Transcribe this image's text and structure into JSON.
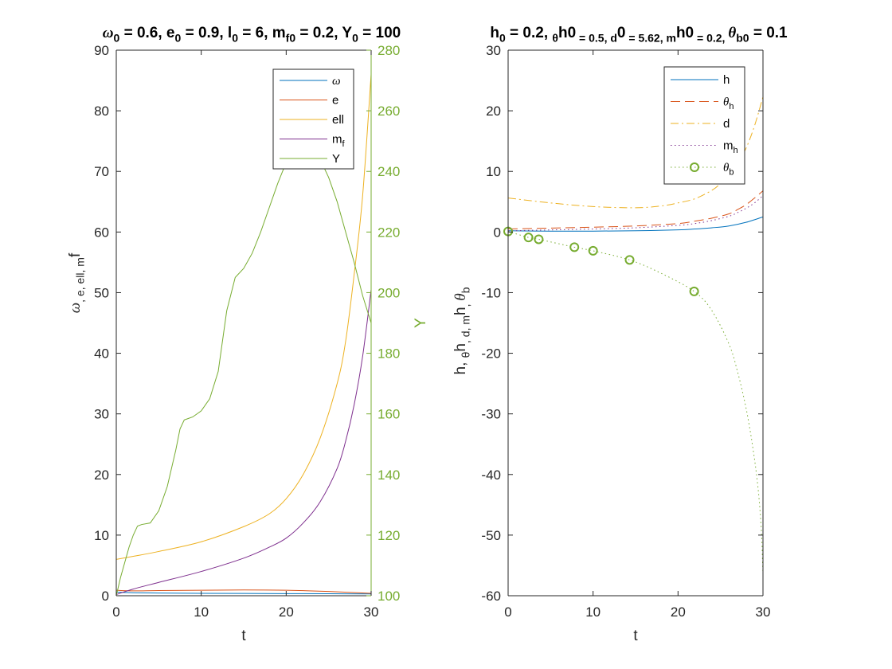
{
  "chart_data": [
    {
      "type": "line",
      "title": [
        "ω",
        "0",
        " = 0.6, e",
        "0",
        " = 0.9, l",
        "0",
        " = 6, m",
        "f0",
        " = 0.2, Y",
        "0",
        " = 100"
      ],
      "xlabel": "t",
      "ylabel_left": [
        "ω",
        ",  e,  ell,  m",
        "f"
      ],
      "ylabel_right": "Y",
      "xlim": [
        0,
        30
      ],
      "ylim_left": [
        0,
        90
      ],
      "ylim_right": [
        100,
        280
      ],
      "xticks": [
        0,
        10,
        20,
        30
      ],
      "yticks_left": [
        0,
        10,
        20,
        30,
        40,
        50,
        60,
        70,
        80,
        90
      ],
      "yticks_right": [
        100,
        120,
        140,
        160,
        180,
        200,
        220,
        240,
        260,
        280
      ],
      "legend": {
        "position": "top-right",
        "entries": [
          [
            "ω",
            ""
          ],
          [
            "e",
            ""
          ],
          [
            "ell",
            ""
          ],
          [
            "m",
            "f"
          ],
          [
            "Y",
            ""
          ]
        ]
      },
      "colors": {
        "omega": "#0072BD",
        "e": "#D95319",
        "ell": "#EDB120",
        "mf": "#7E2F8E",
        "Y": "#77AC30"
      },
      "series": [
        {
          "name": "ω",
          "axis": "left",
          "x": [
            0,
            2,
            5,
            10,
            15,
            20,
            25,
            30
          ],
          "y": [
            0.6,
            0.5,
            0.45,
            0.4,
            0.38,
            0.35,
            0.32,
            0.3
          ]
        },
        {
          "name": "e",
          "axis": "left",
          "x": [
            0,
            2,
            5,
            10,
            15,
            20,
            25,
            30
          ],
          "y": [
            0.9,
            0.8,
            0.85,
            0.9,
            0.95,
            0.9,
            0.7,
            0.4
          ]
        },
        {
          "name": "ell",
          "axis": "left",
          "x": [
            0,
            2,
            5,
            10,
            15,
            18,
            20,
            22,
            24,
            26,
            27,
            28,
            29,
            30
          ],
          "y": [
            6,
            6.5,
            7.3,
            8.9,
            11.4,
            13.5,
            16,
            20,
            26,
            35,
            42,
            53,
            66,
            86
          ]
        },
        {
          "name": "m_f",
          "axis": "left",
          "x": [
            0,
            2,
            5,
            10,
            15,
            18,
            20,
            22,
            24,
            26,
            27,
            28,
            29,
            30
          ],
          "y": [
            0.2,
            1.1,
            2.2,
            4,
            6.2,
            8,
            9.5,
            12,
            15.5,
            21,
            25.5,
            31.5,
            39.5,
            50.5
          ]
        },
        {
          "name": "Y",
          "axis": "right",
          "x": [
            0,
            0.5,
            1,
            1.5,
            2,
            2.5,
            3,
            4,
            5,
            6,
            7,
            7.5,
            8,
            8.5,
            9,
            10,
            11,
            12,
            13,
            14,
            15,
            16,
            17,
            18,
            19,
            20,
            21,
            22,
            23,
            24,
            25,
            26,
            27,
            28,
            29,
            30
          ],
          "y": [
            100,
            106,
            111,
            116,
            120,
            123,
            123.5,
            124,
            128,
            136,
            148,
            155,
            158,
            158.5,
            159,
            161,
            165,
            174,
            194,
            205,
            208,
            213,
            220,
            228,
            236,
            243,
            247,
            248,
            247,
            244,
            238,
            230,
            220,
            210,
            199,
            190
          ]
        }
      ]
    },
    {
      "type": "line",
      "title": [
        "h",
        "0",
        " = 0.2, ",
        "θ",
        "h0",
        " = 0.5, d",
        "0",
        " = 5.62, m",
        "h0",
        " = 0.2, ",
        "θ",
        "b0",
        " = 0.1"
      ],
      "xlabel": "t",
      "ylabel": [
        "h,  ",
        "θ",
        "h",
        ",  d,  m",
        "h",
        ",  ",
        "θ",
        "b"
      ],
      "xlim": [
        0,
        30
      ],
      "ylim": [
        -60,
        30
      ],
      "xticks": [
        0,
        10,
        20,
        30
      ],
      "yticks": [
        -60,
        -50,
        -40,
        -30,
        -20,
        -10,
        0,
        10,
        20,
        30
      ],
      "legend": {
        "position": "top-right",
        "entries": [
          [
            "h",
            ""
          ],
          [
            "θ",
            "h"
          ],
          [
            "d",
            ""
          ],
          [
            "m",
            "h"
          ],
          [
            "θ",
            "b"
          ]
        ]
      },
      "colors": {
        "h": "#0072BD",
        "theta_h": "#D95319",
        "d": "#EDB120",
        "m_h": "#7E2F8E",
        "theta_b": "#77AC30"
      },
      "series": [
        {
          "name": "h",
          "style": "solid",
          "x": [
            0,
            5,
            10,
            15,
            20,
            22,
            24,
            26,
            28,
            30
          ],
          "y": [
            0.2,
            0.15,
            0.15,
            0.2,
            0.35,
            0.5,
            0.7,
            1.0,
            1.6,
            2.5
          ]
        },
        {
          "name": "θ_h",
          "style": "dashed",
          "x": [
            0,
            5,
            10,
            15,
            20,
            22,
            24,
            26,
            27,
            28,
            29,
            30
          ],
          "y": [
            0.5,
            0.65,
            0.8,
            1.0,
            1.4,
            1.8,
            2.3,
            3.0,
            3.7,
            4.5,
            5.6,
            6.8
          ]
        },
        {
          "name": "d",
          "style": "dashdot",
          "x": [
            0,
            5,
            10,
            15,
            18,
            20,
            22,
            24,
            25,
            26,
            27,
            28,
            29,
            30
          ],
          "y": [
            5.62,
            4.8,
            4.2,
            4.0,
            4.3,
            4.8,
            5.5,
            6.9,
            8.0,
            9.4,
            11.3,
            13.8,
            17.5,
            22.3
          ]
        },
        {
          "name": "m_h",
          "style": "dotted",
          "x": [
            0,
            5,
            10,
            15,
            20,
            22,
            24,
            26,
            27,
            28,
            29,
            30
          ],
          "y": [
            0.2,
            0.35,
            0.5,
            0.7,
            1.1,
            1.4,
            1.9,
            2.6,
            3.2,
            3.9,
            4.8,
            6.0
          ]
        },
        {
          "name": "θ_b",
          "style": "dotted",
          "x": [
            0,
            2.4,
            3.6,
            7.8,
            10,
            14.3,
            18,
            21.9,
            24,
            26,
            27,
            28,
            28.8,
            29.4,
            29.8,
            30
          ],
          "y": [
            0.1,
            -0.9,
            -1.2,
            -2.5,
            -3.1,
            -4.6,
            -6.8,
            -9.8,
            -13,
            -18.5,
            -23,
            -29,
            -35.5,
            -42,
            -49,
            -56.5
          ]
        }
      ],
      "markers": {
        "series": "θ_b",
        "symbol": "circle",
        "x": [
          0,
          2.4,
          3.6,
          7.8,
          10,
          14.3,
          21.9
        ],
        "y": [
          0.1,
          -0.9,
          -1.2,
          -2.5,
          -3.1,
          -4.6,
          -9.8
        ]
      }
    }
  ]
}
